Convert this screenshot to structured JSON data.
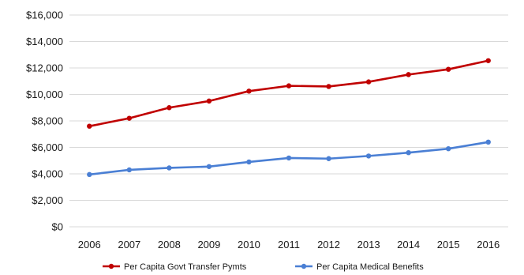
{
  "chart_data": {
    "type": "line",
    "title": "",
    "xlabel": "",
    "ylabel": "",
    "x": [
      "2006",
      "2007",
      "2008",
      "2009",
      "2010",
      "2011",
      "2012",
      "2013",
      "2014",
      "2015",
      "2016"
    ],
    "ylim": [
      0,
      16000
    ],
    "y_ticks": [
      0,
      2000,
      4000,
      6000,
      8000,
      10000,
      12000,
      14000,
      16000
    ],
    "y_tick_labels": [
      "$0",
      "$2,000",
      "$4,000",
      "$6,000",
      "$8,000",
      "$10,000",
      "$12,000",
      "$14,000",
      "$16,000"
    ],
    "grid": true,
    "legend_position": "bottom",
    "series": [
      {
        "name": "Per Capita Govt Transfer Pymts",
        "color": "#c00000",
        "values": [
          7600,
          8200,
          9000,
          9500,
          10250,
          10650,
          10600,
          10950,
          11500,
          11900,
          12550
        ]
      },
      {
        "name": "Per Capita Medical Benefits",
        "color": "#4a7fd4",
        "values": [
          3950,
          4300,
          4450,
          4550,
          4900,
          5200,
          5150,
          5350,
          5600,
          5900,
          6400
        ]
      }
    ]
  }
}
